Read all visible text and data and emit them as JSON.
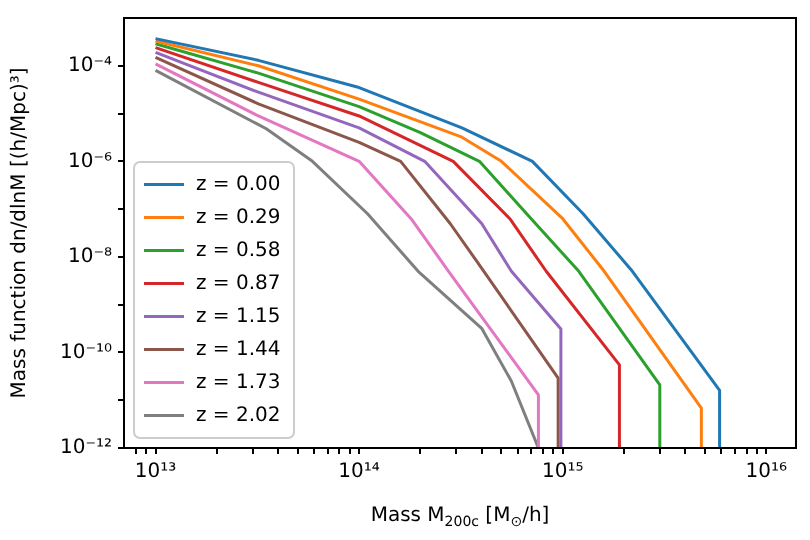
{
  "chart_data": {
    "type": "line",
    "xlabel": "Mass M$_{200c}$ [M$_{⊙}$/h]",
    "ylabel": "Mass function dn/dlnM [(h/Mpc)³]",
    "log": "xy",
    "grid": false,
    "legend": "bottom left",
    "marker": "none",
    "line_style": "solid",
    "xlim": [
      7000000000000.0,
      1.4e+16
    ],
    "xticks": [
      {
        "value": 8000000000000.0,
        "label": null
      },
      {
        "value": 9000000000000.0,
        "label": null
      },
      {
        "value": 10000000000000.0,
        "label": "10¹³"
      },
      {
        "value": 20000000000000.0,
        "label": null
      },
      {
        "value": 30000000000000.0,
        "label": null
      },
      {
        "value": 40000000000000.0,
        "label": null
      },
      {
        "value": 50000000000000.0,
        "label": null
      },
      {
        "value": 60000000000000.0,
        "label": null
      },
      {
        "value": 70000000000000.0,
        "label": null
      },
      {
        "value": 80000000000000.0,
        "label": null
      },
      {
        "value": 90000000000000.0,
        "label": null
      },
      {
        "value": 100000000000000.0,
        "label": "10¹⁴"
      },
      {
        "value": 200000000000000.0,
        "label": null
      },
      {
        "value": 300000000000000.0,
        "label": null
      },
      {
        "value": 400000000000000.0,
        "label": null
      },
      {
        "value": 500000000000000.0,
        "label": null
      },
      {
        "value": 600000000000000.0,
        "label": null
      },
      {
        "value": 700000000000000.0,
        "label": null
      },
      {
        "value": 800000000000000.0,
        "label": null
      },
      {
        "value": 900000000000000.0,
        "label": null
      },
      {
        "value": 1000000000000000.0,
        "label": "10¹⁵"
      },
      {
        "value": 2000000000000000.0,
        "label": null
      },
      {
        "value": 3000000000000000.0,
        "label": null
      },
      {
        "value": 4000000000000000.0,
        "label": null
      },
      {
        "value": 5000000000000000.0,
        "label": null
      },
      {
        "value": 6000000000000000.0,
        "label": null
      },
      {
        "value": 7000000000000000.0,
        "label": null
      },
      {
        "value": 8000000000000000.0,
        "label": null
      },
      {
        "value": 9000000000000000.0,
        "label": null
      },
      {
        "value": 1e+16,
        "label": "10¹⁶"
      }
    ],
    "ylim": [
      1e-12,
      0.001
    ],
    "yticks": [
      {
        "value": 1e-12,
        "label": "10⁻¹²"
      },
      {
        "value": 1e-11,
        "label": null
      },
      {
        "value": 1e-10,
        "label": "10⁻¹⁰"
      },
      {
        "value": 1e-09,
        "label": null
      },
      {
        "value": 1e-08,
        "label": "10⁻⁸"
      },
      {
        "value": 1e-07,
        "label": null
      },
      {
        "value": 1e-06,
        "label": "10⁻⁶"
      },
      {
        "value": 1e-05,
        "label": null
      },
      {
        "value": 0.0001,
        "label": "10⁻⁴"
      }
    ],
    "series": [
      {
        "name": "z = 0.00",
        "color": "#1f77b4",
        "x": [
          10000000000000.0,
          32000000000000.0,
          100000000000000.0,
          320000000000000.0,
          710000000000000.0,
          1260000000000000.0,
          2200000000000000.0,
          5900000000000000.0,
          5900000000000000.0
        ],
        "values": [
          0.00037,
          0.00013,
          3.5e-05,
          5e-06,
          1e-06,
          8e-08,
          5e-09,
          1.6e-11,
          1e-12
        ]
      },
      {
        "name": "z = 0.29",
        "color": "#ff7f0e",
        "x": [
          10000000000000.0,
          32000000000000.0,
          100000000000000.0,
          320000000000000.0,
          500000000000000.0,
          1000000000000000.0,
          1600000000000000.0,
          4800000000000000.0,
          4800000000000000.0
        ],
        "values": [
          0.00033,
          0.0001,
          2e-05,
          3.2e-06,
          1e-06,
          6.3e-08,
          5e-09,
          6.8e-12,
          1e-12
        ]
      },
      {
        "name": "z = 0.58",
        "color": "#2ca02c",
        "x": [
          10000000000000.0,
          32000000000000.0,
          100000000000000.0,
          200000000000000.0,
          390000000000000.0,
          700000000000000.0,
          1200000000000000.0,
          3000000000000000.0,
          3000000000000000.0
        ],
        "values": [
          0.00029,
          7e-05,
          1.4e-05,
          4e-06,
          1e-06,
          6.3e-08,
          5e-09,
          2.1e-11,
          1e-12
        ]
      },
      {
        "name": "z = 0.87",
        "color": "#d62728",
        "x": [
          10000000000000.0,
          32000000000000.0,
          100000000000000.0,
          290000000000000.0,
          550000000000000.0,
          830000000000000.0,
          1900000000000000.0,
          1900000000000000.0
        ],
        "values": [
          0.00024,
          4.5e-05,
          8.9e-06,
          1e-06,
          6.3e-08,
          5e-09,
          5.5e-11,
          1e-12
        ]
      },
      {
        "name": "z = 1.15",
        "color": "#9467bd",
        "x": [
          10000000000000.0,
          32000000000000.0,
          100000000000000.0,
          210000000000000.0,
          400000000000000.0,
          560000000000000.0,
          980000000000000.0,
          980000000000000.0
        ],
        "values": [
          0.00019,
          2.8e-05,
          5e-06,
          1e-06,
          5e-08,
          5e-09,
          3.1e-10,
          1e-12
        ]
      },
      {
        "name": "z = 1.44",
        "color": "#8c564b",
        "x": [
          10000000000000.0,
          32000000000000.0,
          100000000000000.0,
          160000000000000.0,
          280000000000000.0,
          410000000000000.0,
          950000000000000.0,
          950000000000000.0
        ],
        "values": [
          0.00015,
          1.6e-05,
          2.5e-06,
          1e-06,
          5e-08,
          5e-09,
          2.9e-11,
          1e-12
        ]
      },
      {
        "name": "z = 1.73",
        "color": "#e377c2",
        "x": [
          10000000000000.0,
          32000000000000.0,
          100000000000000.0,
          180000000000000.0,
          275000000000000.0,
          760000000000000.0,
          760000000000000.0
        ],
        "values": [
          0.00011,
          8.9e-06,
          1e-06,
          6.3e-08,
          5e-09,
          1.3e-11,
          1e-12
        ]
      },
      {
        "name": "z = 2.02",
        "color": "#7f7f7f",
        "x": [
          10000000000000.0,
          35000000000000.0,
          59000000000000.0,
          110000000000000.0,
          195000000000000.0,
          400000000000000.0,
          560000000000000.0,
          760000000000000.0
        ],
        "values": [
          8e-05,
          4.8e-06,
          1e-06,
          8e-08,
          5e-09,
          3.2e-10,
          2.5e-11,
          1e-12
        ]
      }
    ]
  }
}
